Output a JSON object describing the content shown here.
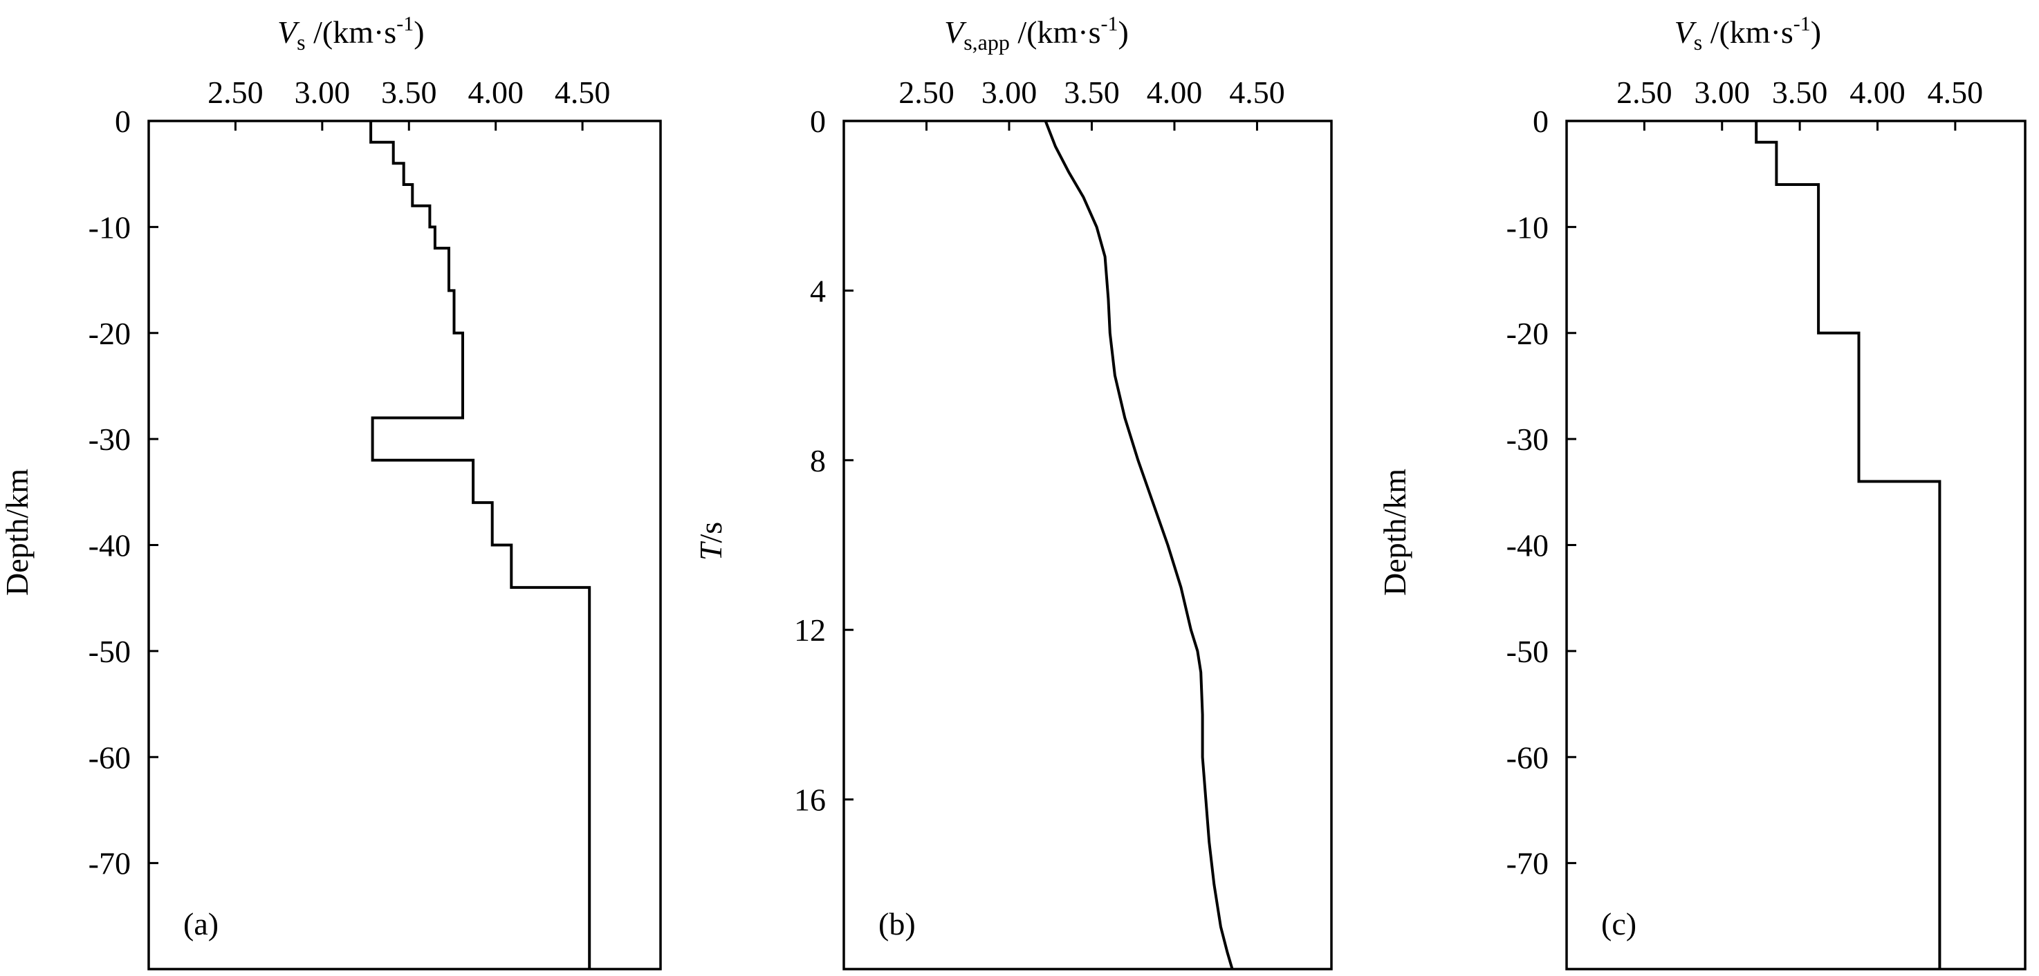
{
  "chart_data": [
    {
      "type": "line",
      "step": true,
      "panel_label": "(a)",
      "xlabel": {
        "symbol": "V",
        "subscript": "s",
        "unit": " /(km·s",
        "unit_sup": "-1",
        "unit_close": ")"
      },
      "ylabel": "Depth/km",
      "xlim": [
        2.0,
        4.95
      ],
      "ylim": [
        0,
        -80
      ],
      "xticks": [
        2.5,
        3.0,
        3.5,
        4.0,
        4.5
      ],
      "xtick_labels": [
        "2.50",
        "3.00",
        "3.50",
        "4.00",
        "4.50"
      ],
      "xticks_position": "top",
      "yticks": [
        0,
        -10,
        -20,
        -30,
        -40,
        -50,
        -60,
        -70
      ],
      "ytick_labels": [
        "0",
        "-10",
        "-20",
        "-30",
        "-40",
        "-50",
        "-60",
        "-70"
      ],
      "grid": false,
      "layers": [
        {
          "top": 0,
          "bottom": -2,
          "vs": 3.28
        },
        {
          "top": -2,
          "bottom": -4,
          "vs": 3.41
        },
        {
          "top": -4,
          "bottom": -6,
          "vs": 3.47
        },
        {
          "top": -6,
          "bottom": -8,
          "vs": 3.52
        },
        {
          "top": -8,
          "bottom": -10,
          "vs": 3.62
        },
        {
          "top": -10,
          "bottom": -12,
          "vs": 3.65
        },
        {
          "top": -12,
          "bottom": -16,
          "vs": 3.73
        },
        {
          "top": -16,
          "bottom": -20,
          "vs": 3.76
        },
        {
          "top": -20,
          "bottom": -28,
          "vs": 3.81
        },
        {
          "top": -28,
          "bottom": -32,
          "vs": 3.29
        },
        {
          "top": -32,
          "bottom": -36,
          "vs": 3.87
        },
        {
          "top": -36,
          "bottom": -40,
          "vs": 3.98
        },
        {
          "top": -40,
          "bottom": -44,
          "vs": 4.09
        },
        {
          "top": -44,
          "bottom": -80,
          "vs": 4.54
        }
      ]
    },
    {
      "type": "line",
      "panel_label": "(b)",
      "xlabel": {
        "symbol": "V",
        "subscript": "s,app",
        "unit": " /(km·s",
        "unit_sup": "-1",
        "unit_close": ")"
      },
      "ylabel": {
        "symbol": "T",
        "unit": "/s"
      },
      "xlim": [
        2.0,
        4.95
      ],
      "ylim": [
        0,
        20
      ],
      "xticks": [
        2.5,
        3.0,
        3.5,
        4.0,
        4.5
      ],
      "xtick_labels": [
        "2.50",
        "3.00",
        "3.50",
        "4.00",
        "4.50"
      ],
      "xticks_position": "top",
      "yticks": [
        0,
        4,
        8,
        12,
        16
      ],
      "ytick_labels": [
        "0",
        "4",
        "8",
        "12",
        "16"
      ],
      "grid": false,
      "x": [
        3.22,
        3.28,
        3.36,
        3.45,
        3.53,
        3.58,
        3.59,
        3.6,
        3.61,
        3.64,
        3.7,
        3.78,
        3.87,
        3.96,
        4.04,
        4.1,
        4.14,
        4.16,
        4.17,
        4.17,
        4.18,
        4.19,
        4.21,
        4.24,
        4.28,
        4.32,
        4.35
      ],
      "y": [
        0.0,
        0.6,
        1.2,
        1.8,
        2.5,
        3.2,
        3.7,
        4.2,
        5.0,
        6.0,
        7.0,
        8.0,
        9.0,
        10.0,
        11.0,
        12.0,
        12.5,
        13.0,
        14.0,
        15.0,
        15.5,
        16.0,
        17.0,
        18.0,
        19.0,
        19.6,
        20.0
      ]
    },
    {
      "type": "line",
      "step": true,
      "panel_label": "(c)",
      "xlabel": {
        "symbol": "V",
        "subscript": "s",
        "unit": " /(km·s",
        "unit_sup": "-1",
        "unit_close": ")"
      },
      "ylabel": "Depth/km",
      "xlim": [
        2.0,
        4.95
      ],
      "ylim": [
        0,
        -80
      ],
      "xticks": [
        2.5,
        3.0,
        3.5,
        4.0,
        4.5
      ],
      "xtick_labels": [
        "2.50",
        "3.00",
        "3.50",
        "4.00",
        "4.50"
      ],
      "xticks_position": "top",
      "yticks": [
        0,
        -10,
        -20,
        -30,
        -40,
        -50,
        -60,
        -70
      ],
      "ytick_labels": [
        "0",
        "-10",
        "-20",
        "-30",
        "-40",
        "-50",
        "-60",
        "-70"
      ],
      "grid": false,
      "layers": [
        {
          "top": 0,
          "bottom": -2,
          "vs": 3.22
        },
        {
          "top": -2,
          "bottom": -6,
          "vs": 3.35
        },
        {
          "top": -6,
          "bottom": -20,
          "vs": 3.62
        },
        {
          "top": -20,
          "bottom": -34,
          "vs": 3.88
        },
        {
          "top": -34,
          "bottom": -80,
          "vs": 4.4
        }
      ]
    }
  ]
}
